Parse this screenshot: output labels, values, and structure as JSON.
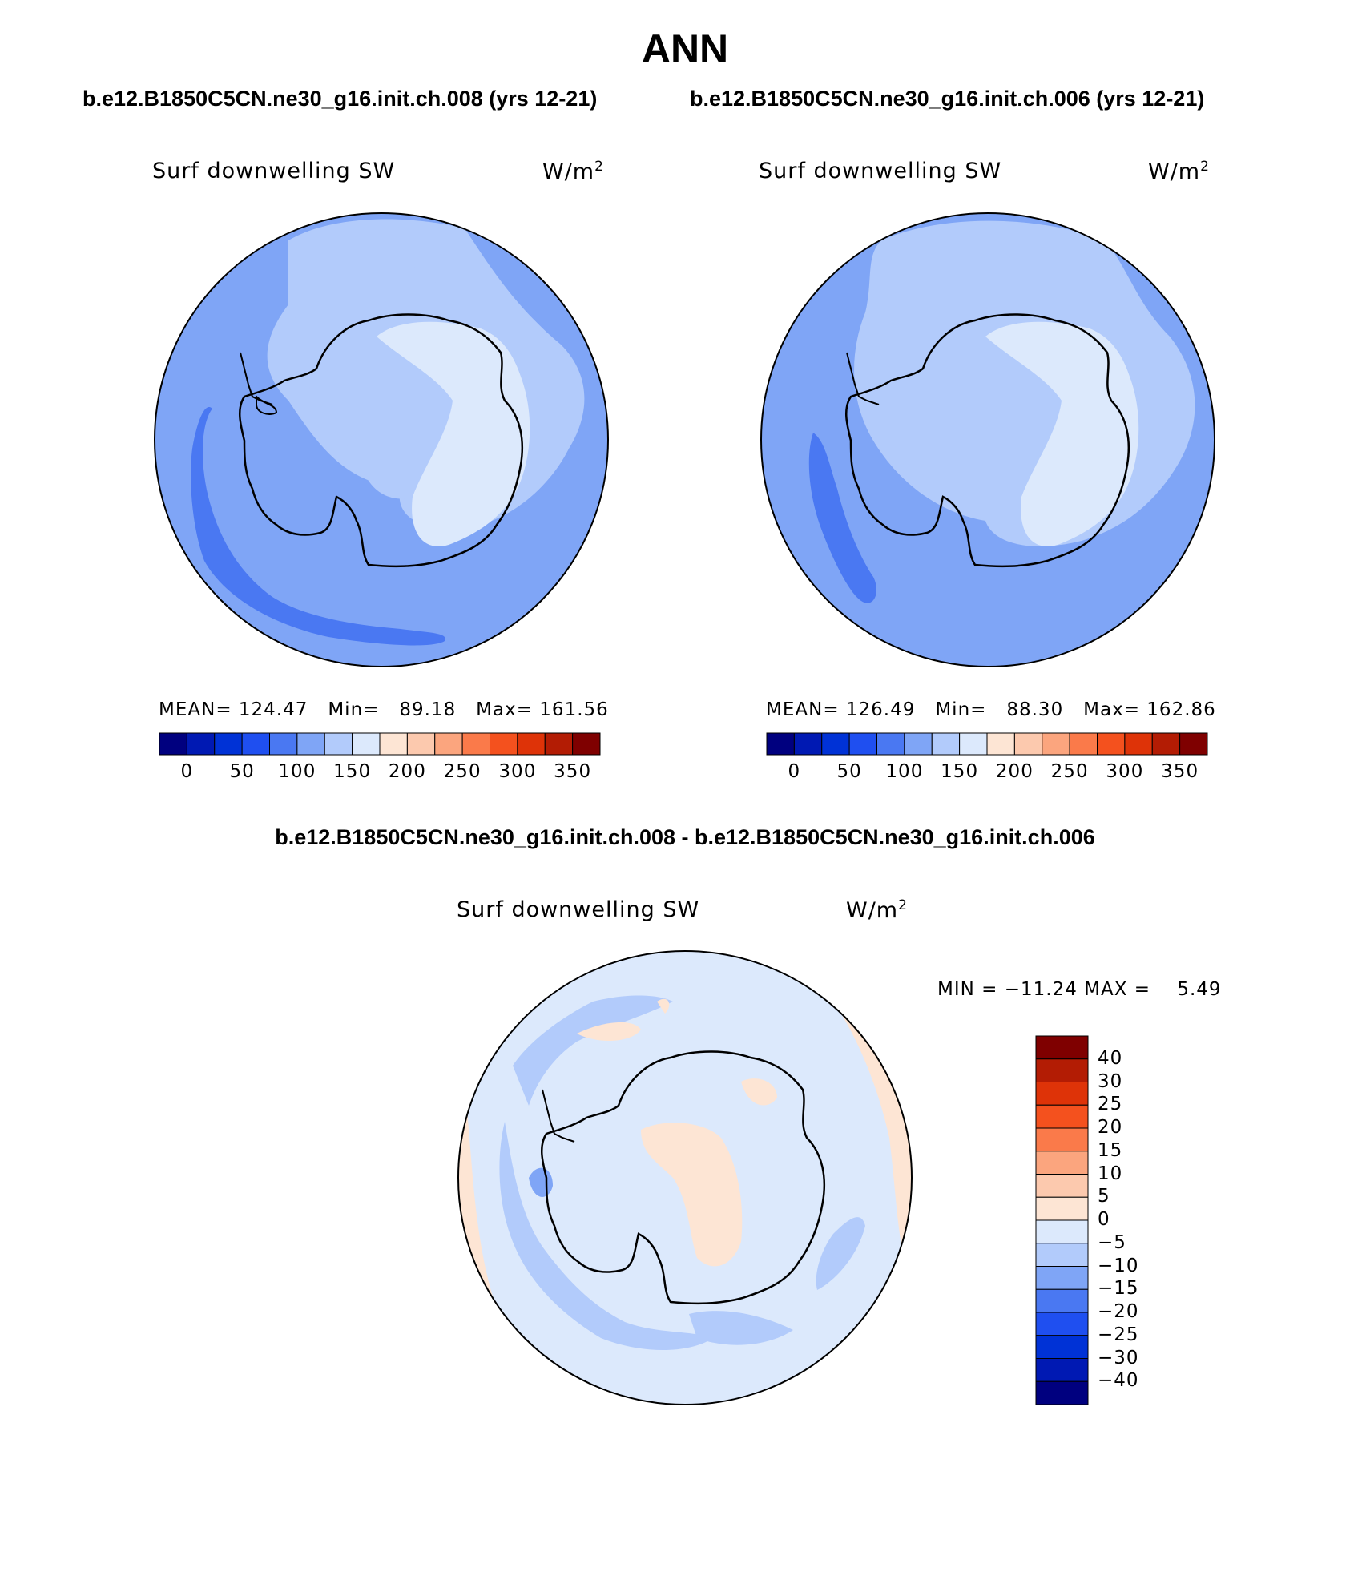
{
  "title": "ANN",
  "subtitle_left": "b.e12.B1850C5CN.ne30_g16.init.ch.008 (yrs 12-21)",
  "subtitle_right": "b.e12.B1850C5CN.ne30_g16.init.ch.006 (yrs 12-21)",
  "diff_title": "b.e12.B1850C5CN.ne30_g16.init.ch.008 - b.e12.B1850C5CN.ne30_g16.init.ch.006",
  "panels": [
    {
      "variable": "Surf downwelling SW",
      "units_base": "W/m",
      "units_exp": "2",
      "stats": {
        "mean_label": "MEAN=",
        "mean": "124.47",
        "min_label": "Min=",
        "min": "89.18",
        "max_label": "Max=",
        "max": "161.56"
      }
    },
    {
      "variable": "Surf downwelling SW",
      "units_base": "W/m",
      "units_exp": "2",
      "stats": {
        "mean_label": "MEAN=",
        "mean": "126.49",
        "min_label": "Min=",
        "min": "88.30",
        "max_label": "Max=",
        "max": "162.86"
      }
    }
  ],
  "diff_panel": {
    "variable": "Surf downwelling SW",
    "units_base": "W/m",
    "units_exp": "2",
    "minmax": "MIN = −11.24 MAX =    5.49"
  },
  "colorbar_main": {
    "colors": [
      "#00007f",
      "#0019b3",
      "#0032d6",
      "#1f4ff0",
      "#4a78f2",
      "#7fa5f6",
      "#b2cbfb",
      "#dce9fc",
      "#fde5d4",
      "#fcc9ae",
      "#fba57e",
      "#fa7a4a",
      "#f4511e",
      "#de3308",
      "#b31c04",
      "#7f0000"
    ],
    "labels": [
      "0",
      "50",
      "100",
      "150",
      "200",
      "250",
      "300",
      "350"
    ]
  },
  "colorbar_diff": {
    "colors_top_to_bottom": [
      "#7f0000",
      "#b31c04",
      "#de3308",
      "#f4511e",
      "#fa7a4a",
      "#fba57e",
      "#fcc9ae",
      "#fde5d4",
      "#dce9fc",
      "#b2cbfb",
      "#7fa5f6",
      "#4a78f2",
      "#1f4ff0",
      "#0032d6",
      "#0019b3",
      "#00007f"
    ],
    "labels_top_to_bottom": [
      "40",
      "30",
      "25",
      "20",
      "15",
      "10",
      "5",
      "0",
      "−5",
      "−10",
      "−15",
      "−20",
      "−25",
      "−30",
      "−40"
    ]
  },
  "colors": {
    "land_outline": "#000000",
    "ocean_base": "#7fa5f6",
    "deep_ocean": "#4a78f2",
    "mid": "#b2cbfb",
    "plateau": "#dce9fc",
    "diff_base": "#dce9fc",
    "diff_positive": "#fde5d4",
    "diff_negative": "#b2cbfb",
    "diff_strong_negative": "#7fa5f6"
  }
}
